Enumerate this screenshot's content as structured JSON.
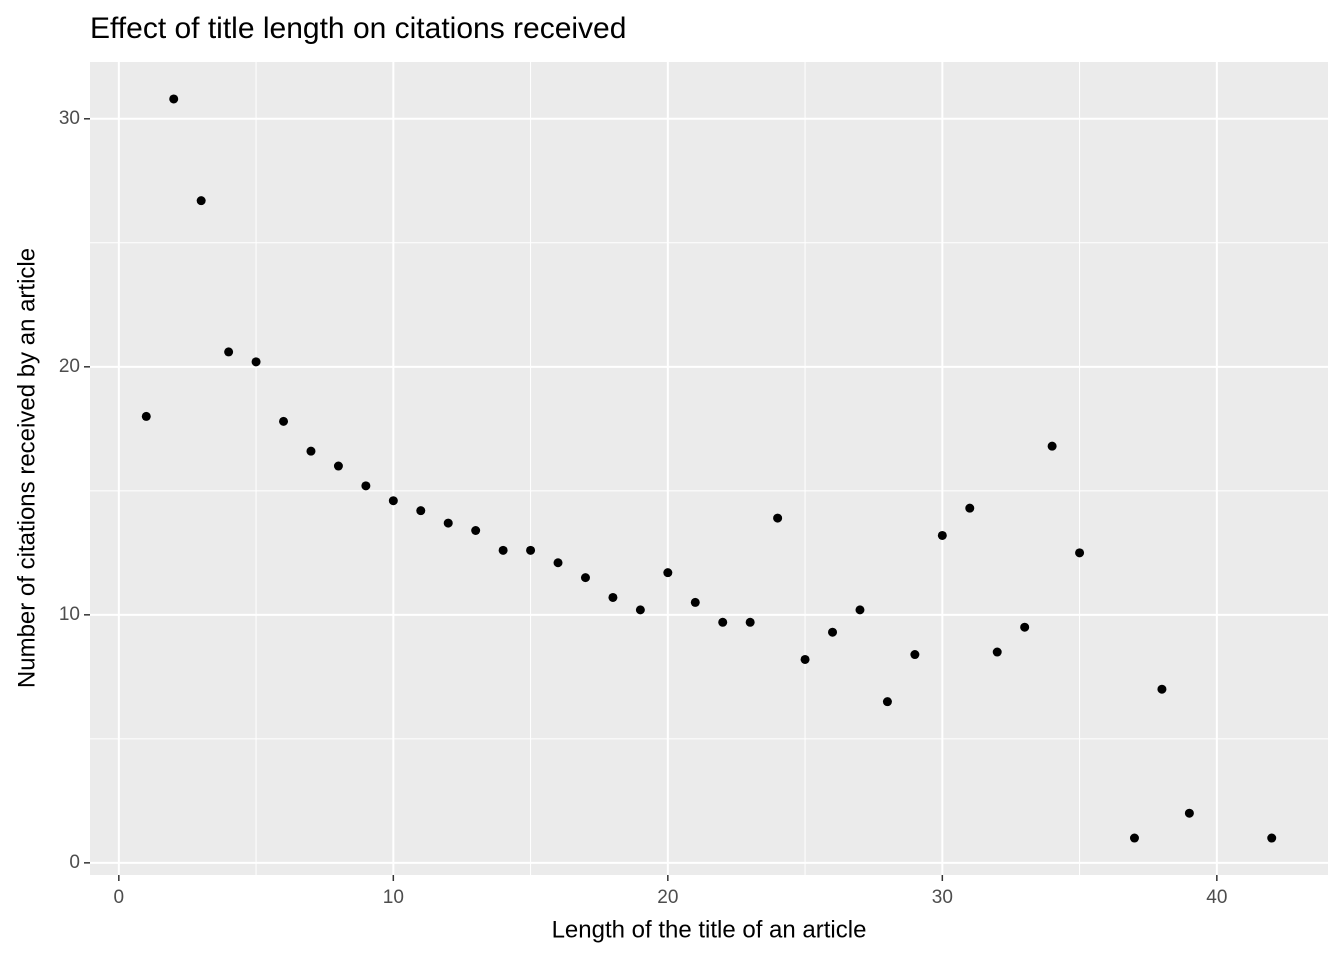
{
  "chart_data": {
    "type": "scatter",
    "title": "Effect of title length on citations received",
    "x_label": "Length of the title of an article",
    "y_label": "Number of citations received by an article",
    "x": [
      1,
      2,
      3,
      4,
      5,
      6,
      7,
      8,
      9,
      10,
      11,
      12,
      13,
      14,
      15,
      16,
      17,
      18,
      19,
      20,
      21,
      22,
      23,
      24,
      25,
      26,
      27,
      28,
      29,
      30,
      31,
      32,
      33,
      34,
      35,
      37,
      38,
      39,
      42
    ],
    "values": [
      18.0,
      30.8,
      26.7,
      20.6,
      20.2,
      17.8,
      16.6,
      16.0,
      15.2,
      14.6,
      14.2,
      13.7,
      13.4,
      12.6,
      12.6,
      12.1,
      11.5,
      10.7,
      10.2,
      11.7,
      10.5,
      9.7,
      9.7,
      13.9,
      8.2,
      9.3,
      10.2,
      6.5,
      8.4,
      13.2,
      14.3,
      8.5,
      9.5,
      16.8,
      12.5,
      1.0,
      7.0,
      2.0,
      1.0
    ],
    "color": "#000000",
    "xlim": [
      -1.05,
      44.05
    ],
    "ylim": [
      -0.49,
      32.29
    ],
    "xticks": [
      0,
      10,
      20,
      30,
      40
    ],
    "yticks": [
      0,
      10,
      20,
      30
    ],
    "x_minor_grid": [
      5,
      15,
      25,
      35
    ],
    "y_minor_grid": [
      5,
      15,
      25
    ],
    "grid": true
  }
}
